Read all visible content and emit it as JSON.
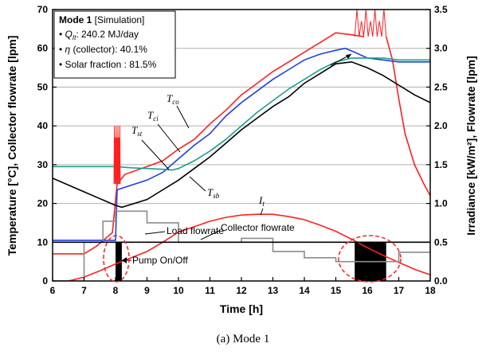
{
  "chart_data": {
    "type": "line",
    "xlabel": "Time [h]",
    "ylabel_left": "Temperature [°C], Collector flowrate [lpm]",
    "ylabel_right": "Irradiance [kW/m²], Flowrate [lpm]",
    "xlim": [
      6,
      18
    ],
    "ylim_left": [
      0,
      70
    ],
    "ylim_right": [
      0,
      3.5
    ],
    "x_ticks": [
      "6",
      "7",
      "8",
      "9",
      "10",
      "11",
      "12",
      "13",
      "14",
      "15",
      "16",
      "17",
      "18"
    ],
    "y_ticks_left": [
      "0",
      "10",
      "20",
      "30",
      "40",
      "50",
      "60",
      "70"
    ],
    "y_ticks_right": [
      "0.0",
      "0.5",
      "1.0",
      "1.5",
      "2.0",
      "2.5",
      "3.0",
      "3.5"
    ],
    "grid": "horizontal",
    "caption": "(a) Mode 1",
    "legend_box": {
      "title_bold": "Mode 1",
      "title_rest": " [Simulation]",
      "lines": [
        {
          "sym": "Q",
          "sub": "It",
          "text": ": 240.2 MJ/day"
        },
        {
          "sym": "η",
          "sub": "",
          "text": " (collector): 40.1%"
        },
        {
          "sym": "",
          "sub": "",
          "text": "Solar fraction : 81.5%"
        }
      ]
    },
    "labels": {
      "tco": "T",
      "tco_sub": "co",
      "tci": "T",
      "tci_sub": "ci",
      "tst": "T",
      "tst_sub": "st",
      "tsb": "T",
      "tsb_sub": "sb",
      "it": "I",
      "it_sub": "t",
      "load_flow": "Load flowrate",
      "coll_flow": "Collector flowrate",
      "pump": "Pump On/Off"
    },
    "series": [
      {
        "name": "Tco",
        "axis": "left",
        "color": "#ff2020",
        "x": [
          6,
          7,
          7.4,
          7.9,
          8.05,
          8.3,
          9,
          9.5,
          10,
          10.5,
          11,
          11.5,
          12,
          12.5,
          13,
          13.5,
          14,
          14.5,
          15,
          15.5,
          15.9
        ],
        "y": [
          7,
          7,
          9,
          12.5,
          25,
          27.5,
          29.5,
          31,
          34,
          36.5,
          40.5,
          44,
          48,
          51,
          54,
          56.5,
          59,
          61.5,
          64,
          63.5,
          63
        ]
      },
      {
        "name": "Tco_falling",
        "axis": "left",
        "color": "#ff2020",
        "x": [
          16.6,
          16.8,
          17,
          17.2,
          17.5,
          17.8,
          18
        ],
        "y": [
          63,
          57,
          47,
          38,
          30,
          25,
          22
        ]
      },
      {
        "name": "Tci",
        "axis": "left",
        "color": "#1f3fe0",
        "x": [
          6,
          7,
          8,
          8.05,
          9,
          9.5,
          10,
          10.5,
          11,
          11.5,
          12,
          12.5,
          13,
          13.5,
          14,
          14.5,
          15,
          15.3,
          15.6,
          16,
          16.5,
          17,
          18
        ],
        "y": [
          10.5,
          10.5,
          10.5,
          23.5,
          26,
          28,
          31.5,
          35,
          38,
          42.5,
          46,
          49,
          52,
          54.5,
          57,
          58.5,
          59.5,
          60,
          59,
          57.5,
          57,
          56.5,
          56.5
        ]
      },
      {
        "name": "Tst",
        "axis": "left",
        "color": "#1e9e8c",
        "x": [
          6,
          7,
          8,
          8.5,
          9,
          9.5,
          9.8,
          10,
          10.5,
          11,
          11.5,
          12,
          12.5,
          13,
          13.5,
          14,
          14.5,
          15,
          15.5,
          16,
          16.5,
          17,
          18
        ],
        "y": [
          29.5,
          29.5,
          29.5,
          29.2,
          29,
          28.8,
          28.6,
          29,
          31,
          33.5,
          36.5,
          40,
          43.5,
          46.5,
          49.5,
          52,
          54.5,
          56.5,
          57.5,
          57.5,
          57.5,
          57,
          57
        ]
      },
      {
        "name": "Tsb",
        "axis": "left",
        "color": "#000000",
        "x": [
          6,
          7,
          8,
          8.2,
          9,
          9.5,
          10,
          10.5,
          11,
          11.5,
          12,
          12.5,
          13,
          13.5,
          14,
          14.5,
          15,
          15.5,
          16,
          16.5,
          17,
          17.5,
          18
        ],
        "y": [
          26.5,
          23,
          19.5,
          19,
          21,
          23.5,
          26,
          29,
          32,
          35.5,
          39,
          42,
          45,
          47.5,
          51,
          53.5,
          56,
          56.5,
          55,
          53,
          50.5,
          48,
          46
        ]
      },
      {
        "name": "It",
        "axis": "right",
        "color": "#ff2020",
        "x": [
          6,
          6.5,
          7,
          7.5,
          8,
          8.5,
          9,
          9.5,
          10,
          10.5,
          11,
          11.5,
          12,
          12.5,
          13,
          13.5,
          14,
          14.5,
          15,
          15.5,
          16,
          16.5,
          17,
          17.5,
          18
        ],
        "y": [
          0.0,
          0.0,
          0.05,
          0.13,
          0.22,
          0.3,
          0.38,
          0.5,
          0.63,
          0.7,
          0.77,
          0.82,
          0.85,
          0.86,
          0.86,
          0.83,
          0.79,
          0.72,
          0.64,
          0.54,
          0.43,
          0.33,
          0.24,
          0.15,
          0.08
        ]
      },
      {
        "name": "Load flowrate",
        "axis": "right",
        "color": "#8c8c8c",
        "step": true,
        "x": [
          6,
          7,
          7.6,
          8,
          9,
          10,
          11,
          12,
          13,
          14,
          15,
          16.1,
          17,
          18
        ],
        "y": [
          0,
          0.5,
          0.77,
          0.9,
          0.75,
          0.5,
          0.5,
          0.55,
          0.38,
          0.3,
          0.25,
          0.25,
          0.37,
          0.37
        ]
      },
      {
        "name": "Collector flowrate",
        "axis": "right",
        "color": "#000000",
        "step": true,
        "x": [
          6,
          8,
          8.1,
          18
        ],
        "y": [
          0.5,
          0.5,
          0.5,
          0.5
        ]
      }
    ],
    "pump_on_blocks": [
      [
        8.0,
        8.2
      ],
      [
        15.6,
        16.6
      ]
    ],
    "spikes": [
      {
        "axis": "left",
        "x_from": 7.95,
        "x_to": 8.15,
        "y_base": 25,
        "y_peak": 40
      },
      {
        "axis": "left",
        "x_from": 15.6,
        "x_to": 16.6,
        "y_base": 63,
        "y_peak": 70
      }
    ]
  }
}
